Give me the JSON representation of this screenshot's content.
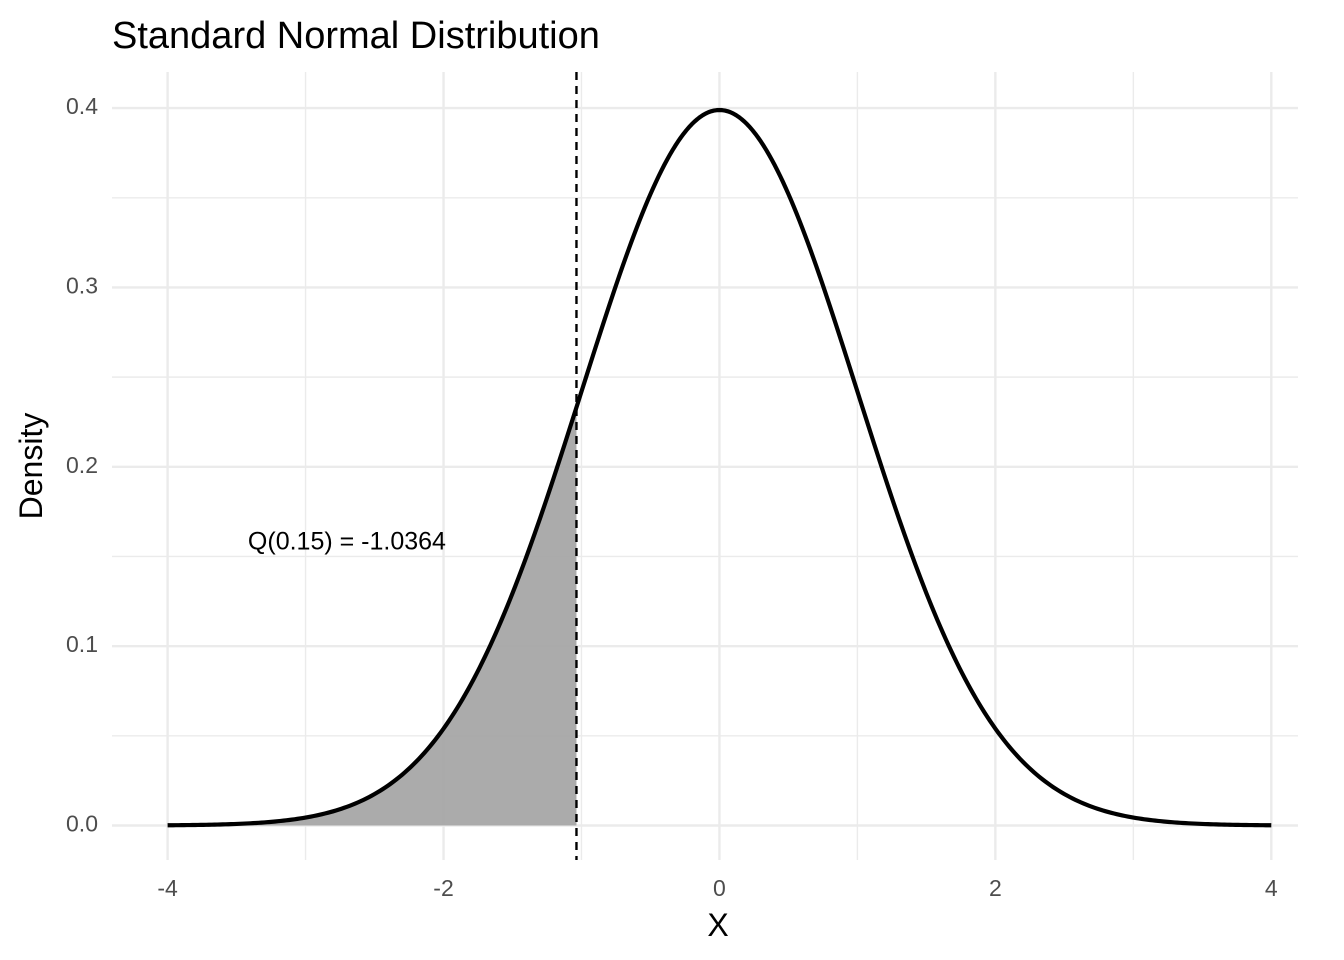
{
  "chart_data": {
    "type": "area",
    "title": "Standard Normal Distribution",
    "xlabel": "X",
    "ylabel": "Density",
    "xlim": [
      -4,
      4
    ],
    "ylim": [
      0,
      0.4
    ],
    "x_ticks": [
      -4,
      -2,
      0,
      2,
      4
    ],
    "x_tick_labels": [
      "-4",
      "-2",
      "0",
      "2",
      "4"
    ],
    "y_ticks": [
      0,
      0.1,
      0.2,
      0.3,
      0.4
    ],
    "y_tick_labels": [
      "0.0",
      "0.1",
      "0.2",
      "0.3",
      "0.4"
    ],
    "grid": true,
    "legend": "none",
    "curve": {
      "function": "standard normal density",
      "mean": 0,
      "sd": 1,
      "x_range": [
        -4,
        4
      ],
      "color": "#000000"
    },
    "shaded_region": {
      "x_from": -4,
      "x_to": -1.0364,
      "probability": 0.15,
      "color": "#a6a6a6"
    },
    "quantile_line": {
      "x": -1.0364,
      "style": "dashed",
      "color": "#000000"
    },
    "annotation": {
      "text": "Q(0.15) = -1.0364",
      "x": -2.7,
      "y": 0.158
    }
  }
}
